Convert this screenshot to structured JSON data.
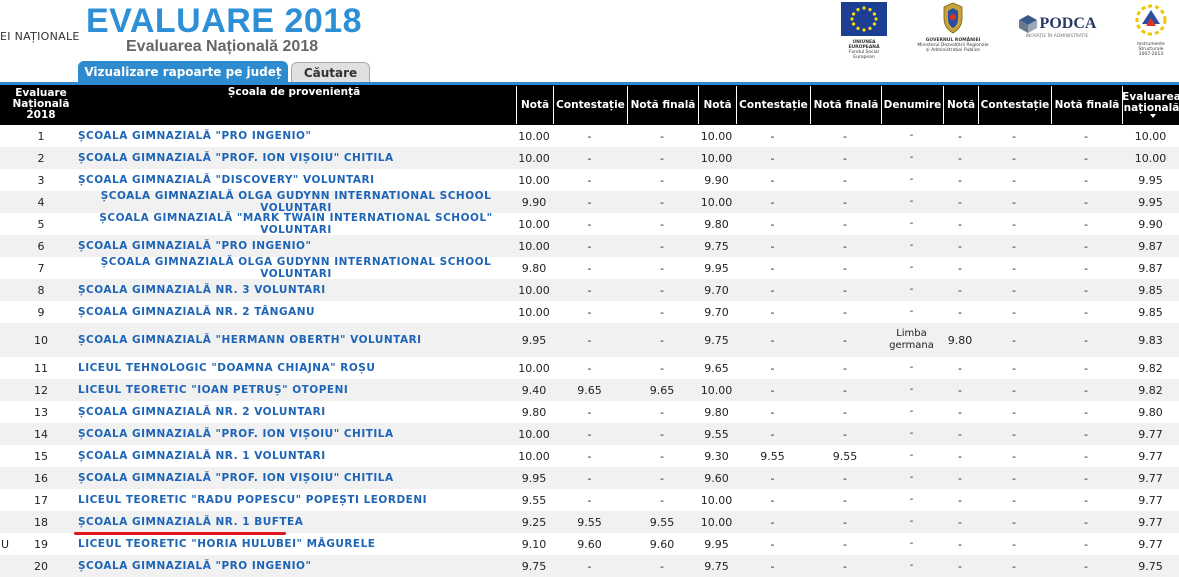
{
  "header": {
    "ministry_fragment": "EI NAȚIONALE",
    "title": "EVALUARE 2018",
    "subtitle": "Evaluarea Națională 2018",
    "logos": [
      {
        "name": "eu-flag",
        "caption1": "UNIUNEA EUROPEANĂ",
        "caption2": "Fondul Social European"
      },
      {
        "name": "romania-coat-of-arms",
        "caption1": "GUVERNUL ROMÂNIEI",
        "caption2": "Ministerul Dezvoltării Regionale și Administrației Publice"
      },
      {
        "name": "podca",
        "caption1": "PODCA",
        "caption2": "INOVAȚIE ÎN ADMINISTRAȚIE"
      },
      {
        "name": "instrumente-structurale",
        "caption1": "Instrumente Structurale",
        "caption2": "2007-2013"
      }
    ],
    "colors": {
      "title": "#2d8fd6",
      "tab_active": "#2e8bd0",
      "school_link": "#1d64b6",
      "highlight_underline": "#e0141b"
    }
  },
  "tabs": [
    {
      "label": "Vizualizare rapoarte pe județ",
      "active": true
    },
    {
      "label": "Căutare",
      "active": false
    }
  ],
  "table": {
    "headers": {
      "rank": "Evaluare Națională 2018",
      "school": "Școala de proveniență",
      "nota1": "Notă",
      "contestatie1": "Contestație",
      "nota_finala1": "Notă finală",
      "nota2": "Notă",
      "contestatie2": "Contestație",
      "nota_finala2": "Notă finală",
      "denumire": "Denumire",
      "nota3": "Notă",
      "contestatie3": "Contestație",
      "nota_finala3": "Notă finală",
      "media": "Evaluarea națională"
    },
    "rows": [
      {
        "prefix": "",
        "rank": "1",
        "school": "ȘCOALA GIMNAZIALĂ \"PRO INGENIO\"",
        "n1": "10.00",
        "c1": "-",
        "f1": "-",
        "n2": "10.00",
        "c2": "-",
        "f2": "-",
        "den": "-",
        "n3": "-",
        "c3": "-",
        "f3": "-",
        "media": "10.00"
      },
      {
        "prefix": "",
        "rank": "2",
        "school": "ȘCOALA GIMNAZIALĂ \"PROF. ION VIȘOIU\" CHITILA",
        "n1": "10.00",
        "c1": "-",
        "f1": "-",
        "n2": "10.00",
        "c2": "-",
        "f2": "-",
        "den": "-",
        "n3": "-",
        "c3": "-",
        "f3": "-",
        "media": "10.00"
      },
      {
        "prefix": "",
        "rank": "3",
        "school": "ȘCOALA GIMNAZIALĂ \"DISCOVERY\" VOLUNTARI",
        "n1": "10.00",
        "c1": "-",
        "f1": "-",
        "n2": "9.90",
        "c2": "-",
        "f2": "-",
        "den": "-",
        "n3": "-",
        "c3": "-",
        "f3": "-",
        "media": "9.95"
      },
      {
        "prefix": "",
        "rank": "4",
        "school": "ȘCOALA GIMNAZIALĂ OLGA GUDYNN INTERNATIONAL SCHOOL VOLUNTARI",
        "n1": "9.90",
        "c1": "-",
        "f1": "-",
        "n2": "10.00",
        "c2": "-",
        "f2": "-",
        "den": "-",
        "n3": "-",
        "c3": "-",
        "f3": "-",
        "media": "9.95"
      },
      {
        "prefix": "",
        "rank": "5",
        "school": "ȘCOALA GIMNAZIALĂ \"MARK TWAIN INTERNATIONAL SCHOOL\" VOLUNTARI",
        "n1": "10.00",
        "c1": "-",
        "f1": "-",
        "n2": "9.80",
        "c2": "-",
        "f2": "-",
        "den": "-",
        "n3": "-",
        "c3": "-",
        "f3": "-",
        "media": "9.90"
      },
      {
        "prefix": "",
        "rank": "6",
        "school": "ȘCOALA GIMNAZIALĂ \"PRO INGENIO\"",
        "n1": "10.00",
        "c1": "-",
        "f1": "-",
        "n2": "9.75",
        "c2": "-",
        "f2": "-",
        "den": "-",
        "n3": "-",
        "c3": "-",
        "f3": "-",
        "media": "9.87"
      },
      {
        "prefix": "",
        "rank": "7",
        "school": "ȘCOALA GIMNAZIALĂ OLGA GUDYNN INTERNATIONAL SCHOOL VOLUNTARI",
        "n1": "9.80",
        "c1": "-",
        "f1": "-",
        "n2": "9.95",
        "c2": "-",
        "f2": "-",
        "den": "-",
        "n3": "-",
        "c3": "-",
        "f3": "-",
        "media": "9.87"
      },
      {
        "prefix": "",
        "rank": "8",
        "school": "ȘCOALA GIMNAZIALĂ NR. 3 VOLUNTARI",
        "n1": "10.00",
        "c1": "-",
        "f1": "-",
        "n2": "9.70",
        "c2": "-",
        "f2": "-",
        "den": "-",
        "n3": "-",
        "c3": "-",
        "f3": "-",
        "media": "9.85"
      },
      {
        "prefix": "",
        "rank": "9",
        "school": "ȘCOALA GIMNAZIALĂ NR. 2 TÂNGANU",
        "n1": "10.00",
        "c1": "-",
        "f1": "-",
        "n2": "9.70",
        "c2": "-",
        "f2": "-",
        "den": "-",
        "n3": "-",
        "c3": "-",
        "f3": "-",
        "media": "9.85"
      },
      {
        "prefix": "",
        "rank": "10",
        "school": "ȘCOALA GIMNAZIALĂ \"HERMANN OBERTH\" VOLUNTARI",
        "n1": "9.95",
        "c1": "-",
        "f1": "-",
        "n2": "9.75",
        "c2": "-",
        "f2": "-",
        "den": "Limba germana",
        "n3": "9.80",
        "c3": "-",
        "f3": "-",
        "media": "9.83"
      },
      {
        "prefix": "",
        "rank": "11",
        "school": "LICEUL TEHNOLOGIC \"DOAMNA CHIAJNA\" ROȘU",
        "n1": "10.00",
        "c1": "-",
        "f1": "-",
        "n2": "9.65",
        "c2": "-",
        "f2": "-",
        "den": "-",
        "n3": "-",
        "c3": "-",
        "f3": "-",
        "media": "9.82"
      },
      {
        "prefix": "",
        "rank": "12",
        "school": "LICEUL TEORETIC \"IOAN PETRUȘ\" OTOPENI",
        "n1": "9.40",
        "c1": "9.65",
        "f1": "9.65",
        "n2": "10.00",
        "c2": "-",
        "f2": "-",
        "den": "-",
        "n3": "-",
        "c3": "-",
        "f3": "-",
        "media": "9.82"
      },
      {
        "prefix": "",
        "rank": "13",
        "school": "ȘCOALA GIMNAZIALĂ NR. 2 VOLUNTARI",
        "n1": "9.80",
        "c1": "-",
        "f1": "-",
        "n2": "9.80",
        "c2": "-",
        "f2": "-",
        "den": "-",
        "n3": "-",
        "c3": "-",
        "f3": "-",
        "media": "9.80"
      },
      {
        "prefix": "",
        "rank": "14",
        "school": "ȘCOALA GIMNAZIALĂ \"PROF. ION VIȘOIU\" CHITILA",
        "n1": "10.00",
        "c1": "-",
        "f1": "-",
        "n2": "9.55",
        "c2": "-",
        "f2": "-",
        "den": "-",
        "n3": "-",
        "c3": "-",
        "f3": "-",
        "media": "9.77"
      },
      {
        "prefix": "",
        "rank": "15",
        "school": "ȘCOALA GIMNAZIALĂ NR. 1 VOLUNTARI",
        "n1": "10.00",
        "c1": "-",
        "f1": "-",
        "n2": "9.30",
        "c2": "9.55",
        "f2": "9.55",
        "den": "-",
        "n3": "-",
        "c3": "-",
        "f3": "-",
        "media": "9.77"
      },
      {
        "prefix": "",
        "rank": "16",
        "school": "ȘCOALA GIMNAZIALĂ \"PROF. ION VIȘOIU\" CHITILA",
        "n1": "9.95",
        "c1": "-",
        "f1": "-",
        "n2": "9.60",
        "c2": "-",
        "f2": "-",
        "den": "-",
        "n3": "-",
        "c3": "-",
        "f3": "-",
        "media": "9.77"
      },
      {
        "prefix": "",
        "rank": "17",
        "school": "LICEUL TEORETIC \"RADU POPESCU\" POPEȘTI LEORDENI",
        "n1": "9.55",
        "c1": "-",
        "f1": "-",
        "n2": "10.00",
        "c2": "-",
        "f2": "-",
        "den": "-",
        "n3": "-",
        "c3": "-",
        "f3": "-",
        "media": "9.77"
      },
      {
        "prefix": "",
        "rank": "18",
        "school": "ȘCOALA GIMNAZIALĂ NR. 1 BUFTEA",
        "n1": "9.25",
        "c1": "9.55",
        "f1": "9.55",
        "n2": "10.00",
        "c2": "-",
        "f2": "-",
        "den": "-",
        "n3": "-",
        "c3": "-",
        "f3": "-",
        "media": "9.77"
      },
      {
        "prefix": "U",
        "rank": "19",
        "school": "LICEUL TEORETIC \"HORIA HULUBEI\" MĂGURELE",
        "n1": "9.10",
        "c1": "9.60",
        "f1": "9.60",
        "n2": "9.95",
        "c2": "-",
        "f2": "-",
        "den": "-",
        "n3": "-",
        "c3": "-",
        "f3": "-",
        "media": "9.77"
      },
      {
        "prefix": "",
        "rank": "20",
        "school": "ȘCOALA GIMNAZIALĂ \"PRO INGENIO\"",
        "n1": "9.75",
        "c1": "-",
        "f1": "-",
        "n2": "9.75",
        "c2": "-",
        "f2": "-",
        "den": "-",
        "n3": "-",
        "c3": "-",
        "f3": "-",
        "media": "9.75"
      }
    ]
  }
}
